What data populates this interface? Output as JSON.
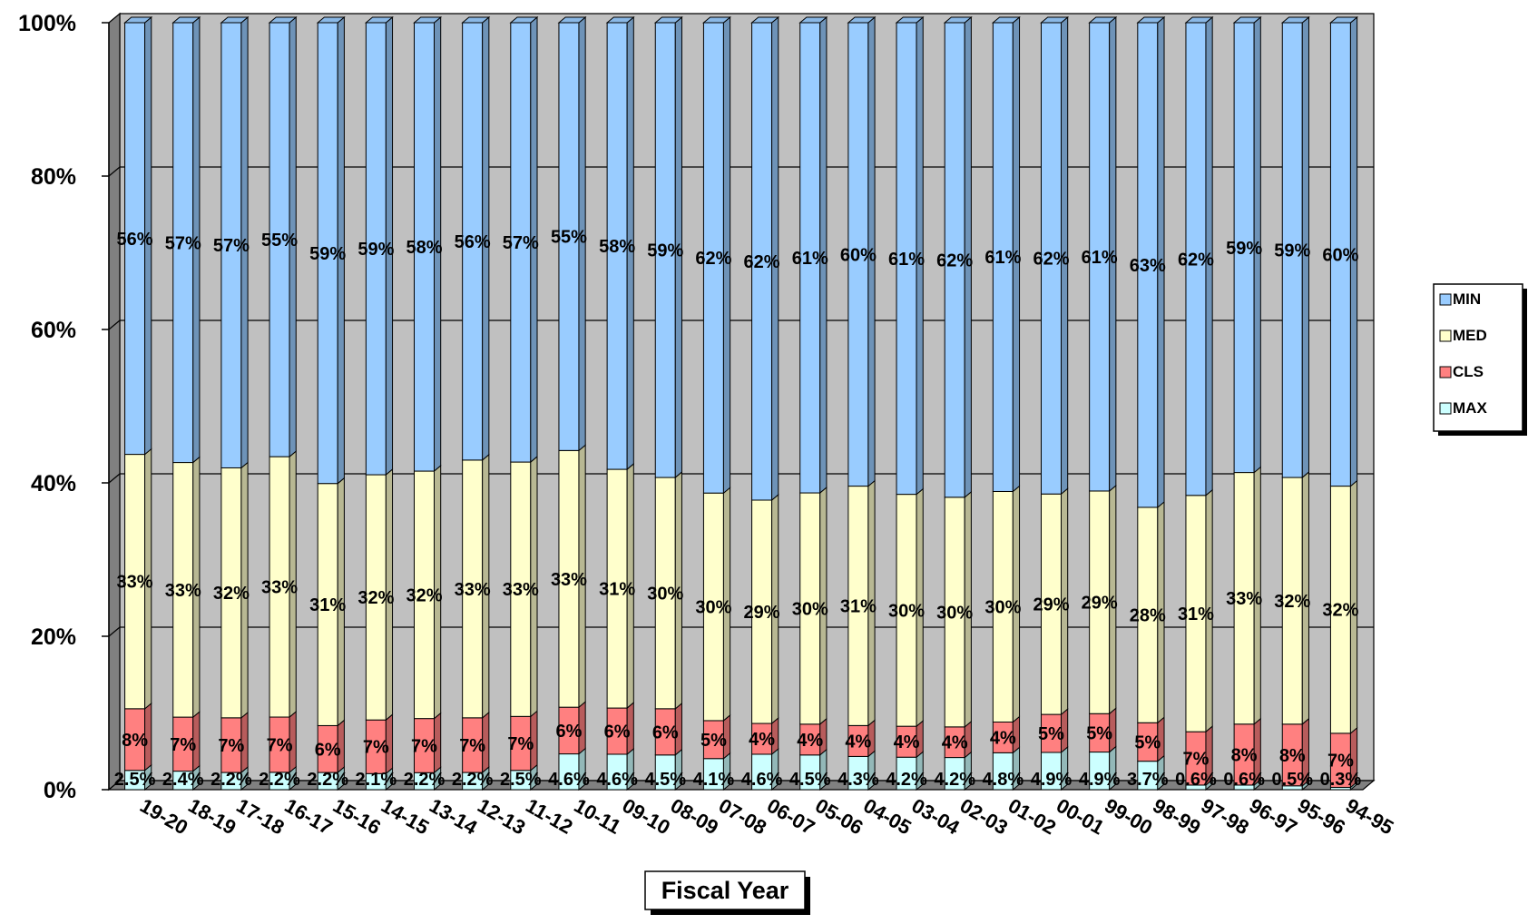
{
  "chart_data": {
    "type": "bar",
    "stacked": true,
    "percent_stacked": true,
    "three_d": true,
    "categories": [
      "19-20",
      "18-19",
      "17-18",
      "16-17",
      "15-16",
      "14-15",
      "13-14",
      "12-13",
      "11-12",
      "10-11",
      "09-10",
      "08-09",
      "07-08",
      "06-07",
      "05-06",
      "04-05",
      "03-04",
      "02-03",
      "01-02",
      "00-01",
      "99-00",
      "98-99",
      "97-98",
      "96-97",
      "95-96",
      "94-95"
    ],
    "series": [
      {
        "name": "MAX",
        "color": "#ccffff",
        "values": [
          2.5,
          2.4,
          2.2,
          2.2,
          2.2,
          2.1,
          2.2,
          2.2,
          2.5,
          4.6,
          4.6,
          4.5,
          4.1,
          4.6,
          4.5,
          4.3,
          4.2,
          4.2,
          4.8,
          4.9,
          4.9,
          3.7,
          0.6,
          0.6,
          0.5,
          0.3
        ],
        "labels": [
          "2.5%",
          "2.4%",
          "2.2%",
          "2.2%",
          "2.2%",
          "2.1%",
          "2.2%",
          "2.2%",
          "2.5%",
          "4.6%",
          "4.6%",
          "4.5%",
          "4.1%",
          "4.6%",
          "4.5%",
          "4.3%",
          "4.2%",
          "4.2%",
          "4.8%",
          "4.9%",
          "4.9%",
          "3.7%",
          "0.6%",
          "0.6%",
          "0.5%",
          "0.3%"
        ]
      },
      {
        "name": "CLS",
        "color": "#ff8080",
        "values": [
          8,
          7,
          7,
          7,
          6,
          7,
          7,
          7,
          7,
          6,
          6,
          6,
          5,
          4,
          4,
          4,
          4,
          4,
          4,
          5,
          5,
          5,
          7,
          8,
          8,
          7
        ],
        "labels": [
          "8%",
          "7%",
          "7%",
          "7%",
          "6%",
          "7%",
          "7%",
          "7%",
          "7%",
          "6%",
          "6%",
          "6%",
          "5%",
          "4%",
          "4%",
          "4%",
          "4%",
          "4%",
          "4%",
          "5%",
          "5%",
          "5%",
          "7%",
          "8%",
          "8%",
          "7%"
        ]
      },
      {
        "name": "MED",
        "color": "#ffffcc",
        "values": [
          33,
          33,
          32,
          33,
          31,
          32,
          32,
          33,
          33,
          33,
          31,
          30,
          30,
          29,
          30,
          31,
          30,
          30,
          30,
          29,
          29,
          28,
          31,
          33,
          32,
          32
        ],
        "labels": [
          "33%",
          "33%",
          "32%",
          "33%",
          "31%",
          "32%",
          "32%",
          "33%",
          "33%",
          "33%",
          "31%",
          "30%",
          "30%",
          "29%",
          "30%",
          "31%",
          "30%",
          "30%",
          "30%",
          "29%",
          "29%",
          "28%",
          "31%",
          "33%",
          "32%",
          "32%"
        ]
      },
      {
        "name": "MIN",
        "color": "#99ccff",
        "values": [
          56,
          57,
          57,
          55,
          59,
          59,
          58,
          56,
          57,
          55,
          58,
          59,
          62,
          62,
          61,
          60,
          61,
          62,
          61,
          62,
          61,
          63,
          62,
          59,
          59,
          60
        ],
        "labels": [
          "56%",
          "57%",
          "57%",
          "55%",
          "59%",
          "59%",
          "58%",
          "56%",
          "57%",
          "55%",
          "58%",
          "59%",
          "62%",
          "62%",
          "61%",
          "60%",
          "61%",
          "62%",
          "61%",
          "62%",
          "61%",
          "63%",
          "62%",
          "59%",
          "59%",
          "60%"
        ]
      }
    ],
    "legend_order": [
      "MIN",
      "MED",
      "CLS",
      "MAX"
    ],
    "yticks": [
      "0%",
      "20%",
      "40%",
      "60%",
      "80%",
      "100%"
    ],
    "ylim": [
      0,
      100
    ],
    "xlabel": "Fiscal Year",
    "ylabel": "",
    "title": "",
    "grid": true,
    "legend_position": "right",
    "plot_background": "#c0c0c0",
    "wall_side_color": "#808080"
  }
}
